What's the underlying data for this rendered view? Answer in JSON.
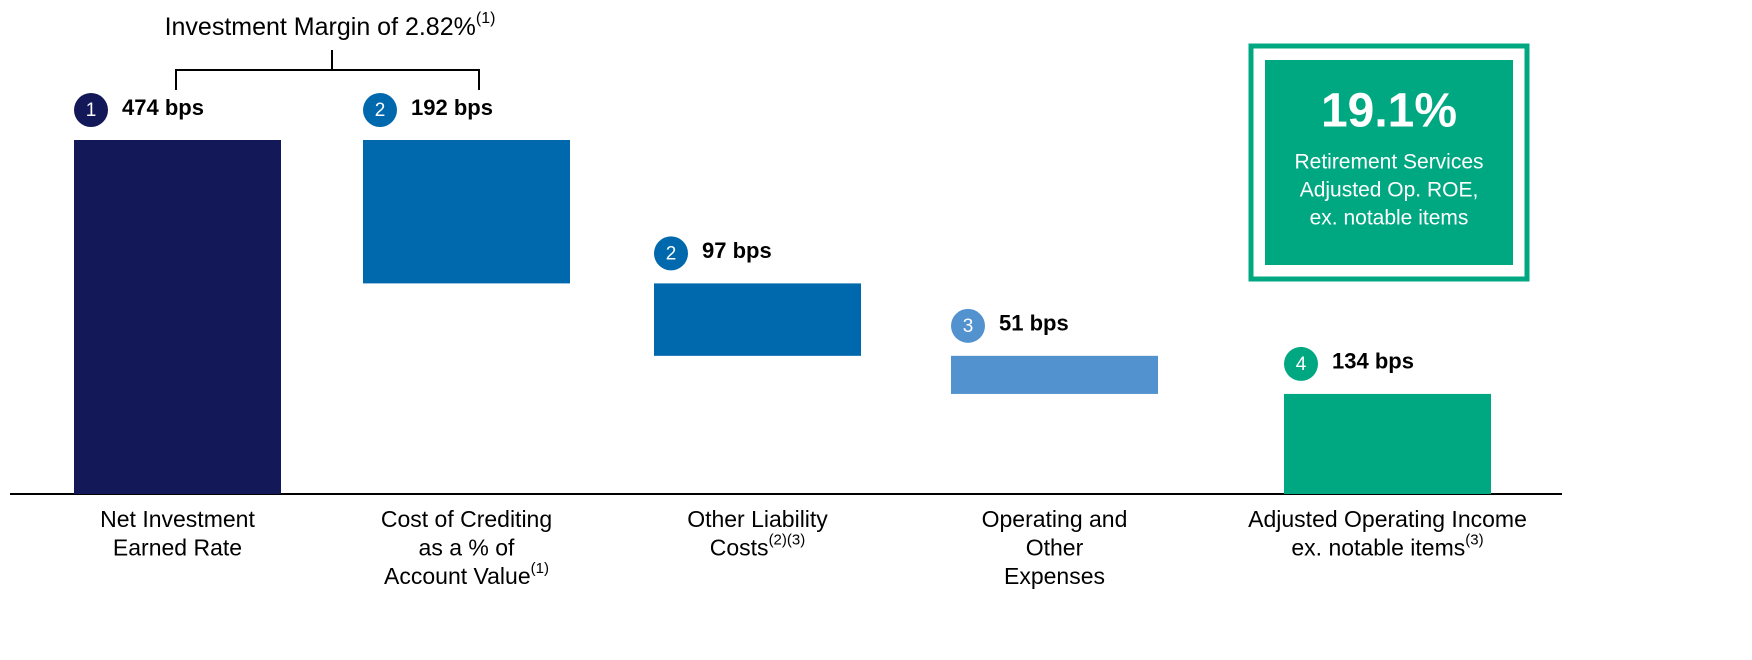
{
  "chart_data": {
    "type": "waterfall",
    "title": "Investment Margin of 2.82%",
    "title_note": "(1)",
    "categories": [
      [
        "Net Investment",
        "Earned Rate"
      ],
      [
        "Cost of Crediting",
        "as a % of",
        "Account Value"
      ],
      [
        "Other Liability",
        "Costs"
      ],
      [
        "Operating and",
        "Other",
        "Expenses"
      ],
      [
        "Adjusted Operating Income",
        "ex. notable items"
      ]
    ],
    "category_notes": [
      null,
      "(1)",
      "(2)(3)",
      null,
      "(3)"
    ],
    "measures": [
      "total",
      "decrease",
      "decrease",
      "decrease",
      "total"
    ],
    "values": [
      474,
      192,
      97,
      51,
      134
    ],
    "value_labels": [
      "474 bps",
      "192 bps",
      "97 bps",
      "51 bps",
      "134 bps"
    ],
    "markers": [
      "1",
      "2",
      "2",
      "3",
      "4"
    ],
    "colors": [
      "#131858",
      "#0069ad",
      "#0069ad",
      "#5192cf",
      "#00a882"
    ],
    "callout": {
      "value": "19.1%",
      "lines": [
        "Retirement Services",
        "Adjusted Op. ROE,",
        "ex. notable items"
      ],
      "color": "#00a882"
    }
  }
}
